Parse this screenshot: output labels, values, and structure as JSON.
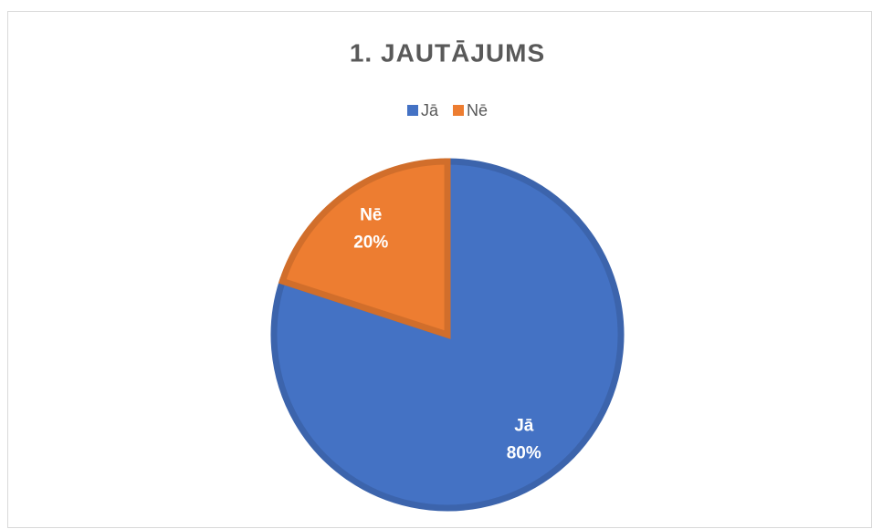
{
  "chart_data": {
    "type": "pie",
    "title": "1. JAUTĀJUMS",
    "categories": [
      "Jā",
      "Nē"
    ],
    "values": [
      80,
      20
    ],
    "value_labels": [
      "80%",
      "20%"
    ],
    "colors": [
      "#4472c4",
      "#ed7d31"
    ],
    "legend": "top"
  }
}
